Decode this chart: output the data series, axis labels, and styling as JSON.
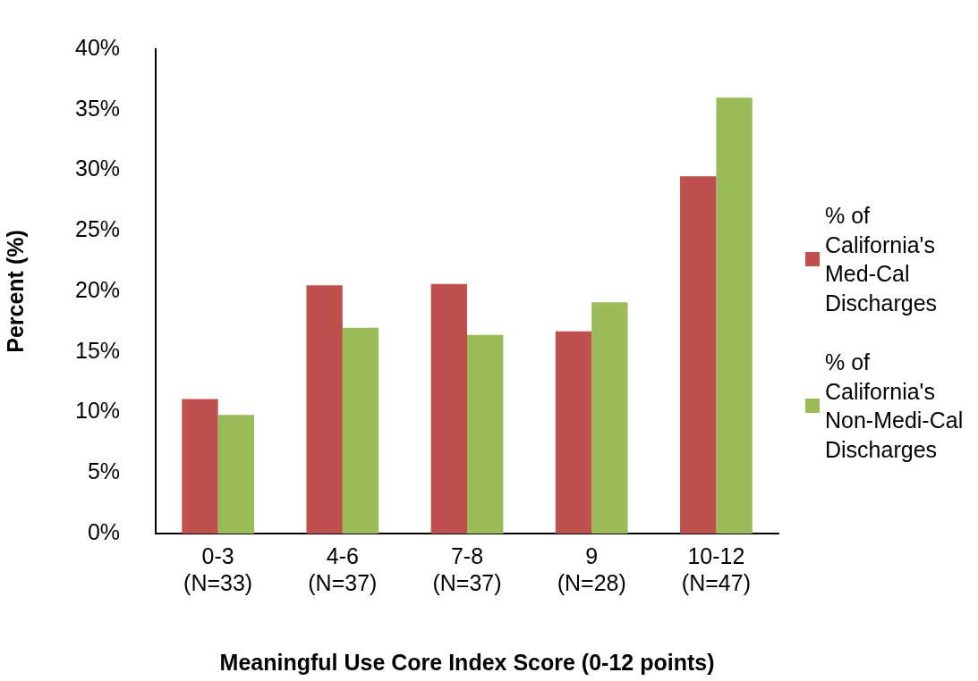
{
  "chart_data": {
    "type": "bar",
    "xlabel": "Meaningful Use Core Index Score (0-12 points)",
    "ylabel": "Percent (%)",
    "categories": [
      "0-3\n(N=33)",
      "4-6\n(N=37)",
      "7-8\n(N=37)",
      "9\n(N=28)",
      "10-12\n(N=47)"
    ],
    "series": [
      {
        "name": "% of California's Med-Cal Discharges",
        "color": "#c0504d",
        "values": [
          11.1,
          20.5,
          20.6,
          16.7,
          29.5
        ]
      },
      {
        "name": "% of California's Non-Medi-Cal Discharges",
        "color": "#9bbb59",
        "values": [
          9.8,
          17.0,
          16.4,
          19.1,
          36.0
        ]
      }
    ],
    "ylim": [
      0,
      40
    ],
    "yticks": [
      {
        "value": 0,
        "label": "0%"
      },
      {
        "value": 5,
        "label": "5%"
      },
      {
        "value": 10,
        "label": "10%"
      },
      {
        "value": 15,
        "label": "15%"
      },
      {
        "value": 20,
        "label": "20%"
      },
      {
        "value": 25,
        "label": "25%"
      },
      {
        "value": 30,
        "label": "30%"
      },
      {
        "value": 35,
        "label": "35%"
      },
      {
        "value": 40,
        "label": "40%"
      }
    ],
    "grid": false,
    "legend": "right"
  }
}
